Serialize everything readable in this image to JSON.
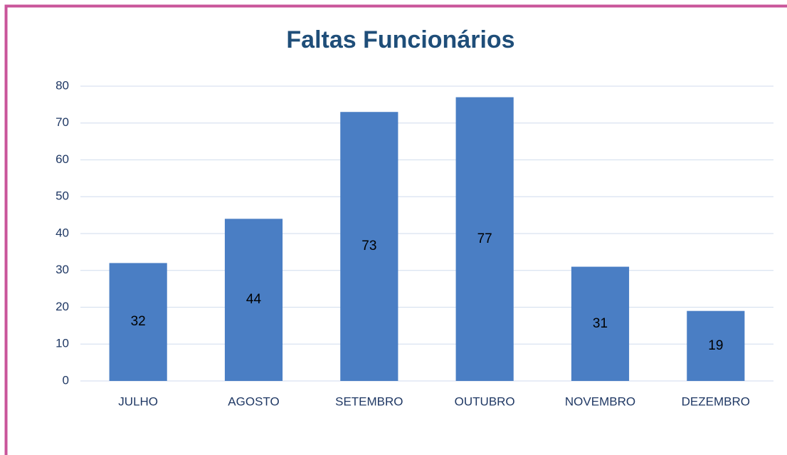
{
  "chart_data": {
    "type": "bar",
    "title": "Faltas Funcionários",
    "categories": [
      "JULHO",
      "AGOSTO",
      "SETEMBRO",
      "OUTUBRO",
      "NOVEMBRO",
      "DEZEMBRO"
    ],
    "values": [
      32,
      44,
      73,
      77,
      31,
      19
    ],
    "color": "#4a7ec4",
    "ylim": [
      0,
      80
    ],
    "yticks": [
      0,
      10,
      20,
      30,
      40,
      50,
      60,
      70,
      80
    ],
    "grid": true
  }
}
